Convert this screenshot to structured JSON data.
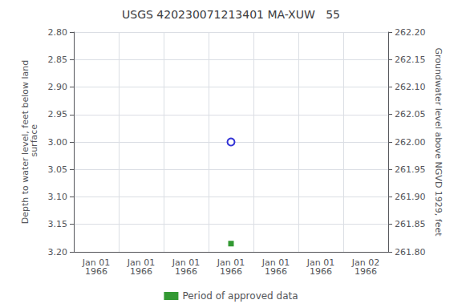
{
  "chart_data": {
    "type": "scatter",
    "title": "USGS 420230071213401 MA-XUW   55",
    "x_label": null,
    "y_label": "Depth to water level, feet below land\n surface",
    "y2_label": "Groundwater level above NGVD 1929, feet",
    "categories": [
      "Jan 01\n1966",
      "Jan 01\n1966",
      "Jan 01\n1966",
      "Jan 01\n1966",
      "Jan 01\n1966",
      "Jan 01\n1966",
      "Jan 02\n1966"
    ],
    "series": [
      {
        "color": "#0000cc",
        "marker": "open_circle",
        "values": [
          null,
          null,
          null,
          3.0,
          null,
          null,
          null
        ]
      },
      {
        "name": "Period of approved data",
        "color": "#008000",
        "marker": "square",
        "values": [
          null,
          null,
          null,
          3.185,
          null,
          null,
          null
        ]
      }
    ],
    "ylim": [
      3.2,
      2.8
    ],
    "yticks": [
      {
        "value": 2.8,
        "label": "2.80"
      },
      {
        "value": 2.85,
        "label": "2.85"
      },
      {
        "value": 2.9,
        "label": "2.90"
      },
      {
        "value": 2.95,
        "label": "2.95"
      },
      {
        "value": 3.0,
        "label": "3.00"
      },
      {
        "value": 3.05,
        "label": "3.05"
      },
      {
        "value": 3.1,
        "label": "3.10"
      },
      {
        "value": 3.15,
        "label": "3.15"
      },
      {
        "value": 3.2,
        "label": "3.20"
      }
    ],
    "y2lim": [
      261.8,
      262.2
    ],
    "y2ticks": [
      {
        "value": 261.8,
        "label": "261.80"
      },
      {
        "value": 261.85,
        "label": "261.85"
      },
      {
        "value": 261.9,
        "label": "261.90"
      },
      {
        "value": 261.95,
        "label": "261.95"
      },
      {
        "value": 262.0,
        "label": "262.00"
      },
      {
        "value": 262.05,
        "label": "262.05"
      },
      {
        "value": 262.1,
        "label": "262.10"
      },
      {
        "value": 262.15,
        "label": "262.15"
      },
      {
        "value": 262.2,
        "label": "262.20"
      }
    ],
    "grid": true,
    "legend": "bottom"
  }
}
